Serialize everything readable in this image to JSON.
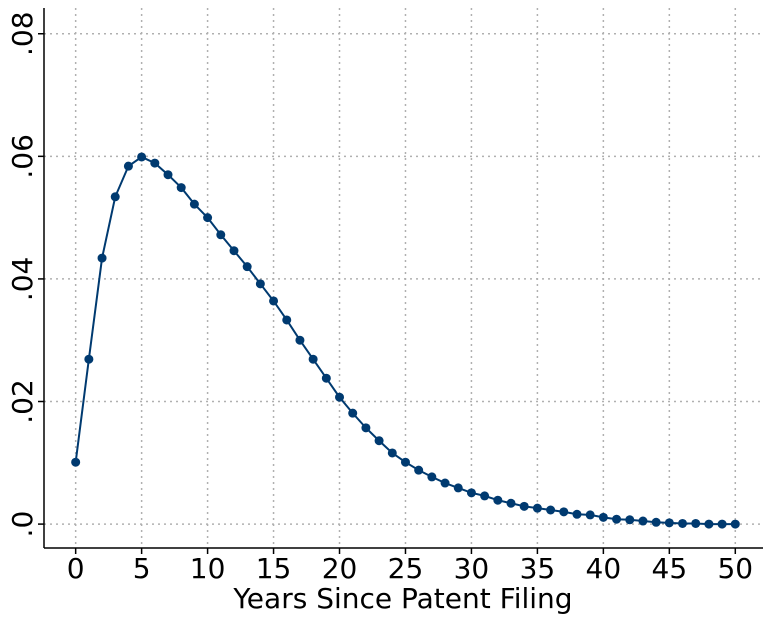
{
  "chart_data": {
    "type": "line",
    "x_label": "Years Since Patent Filing",
    "x": [
      0,
      1,
      2,
      3,
      4,
      5,
      6,
      7,
      8,
      9,
      10,
      11,
      12,
      13,
      14,
      15,
      16,
      17,
      18,
      19,
      20,
      21,
      22,
      23,
      24,
      25,
      26,
      27,
      28,
      29,
      30,
      31,
      32,
      33,
      34,
      35,
      36,
      37,
      38,
      39,
      40,
      41,
      42,
      43,
      44,
      45,
      46,
      47,
      48,
      49,
      50
    ],
    "series": [
      {
        "color": "#003a70",
        "values": [
          0.0101,
          0.0269,
          0.0434,
          0.0534,
          0.0584,
          0.0599,
          0.0589,
          0.057,
          0.0549,
          0.0522,
          0.05,
          0.0472,
          0.0446,
          0.042,
          0.0392,
          0.0364,
          0.0333,
          0.03,
          0.0269,
          0.0238,
          0.0207,
          0.0181,
          0.0157,
          0.0136,
          0.0116,
          0.0101,
          0.0088,
          0.0077,
          0.0067,
          0.0059,
          0.0051,
          0.0046,
          0.0039,
          0.0034,
          0.0029,
          0.0026,
          0.0023,
          0.002,
          0.0016,
          0.0015,
          0.0011,
          0.0008,
          0.0007,
          0.0005,
          0.0003,
          0.0002,
          0.0001,
          0.0001,
          0,
          0,
          0
        ]
      }
    ],
    "xlim": [
      -2.4,
      52.1
    ],
    "xticks": [
      0,
      5,
      10,
      15,
      20,
      25,
      30,
      35,
      40,
      45,
      50
    ],
    "ylim": [
      -0.0039,
      0.0842
    ],
    "yticks": [
      {
        "value": 0,
        "label": ".0"
      },
      {
        "value": 0.02,
        "label": ".02"
      },
      {
        "value": 0.04,
        "label": ".04"
      },
      {
        "value": 0.06,
        "label": ".06"
      },
      {
        "value": 0.08,
        "label": ".08"
      }
    ],
    "grid": true
  }
}
